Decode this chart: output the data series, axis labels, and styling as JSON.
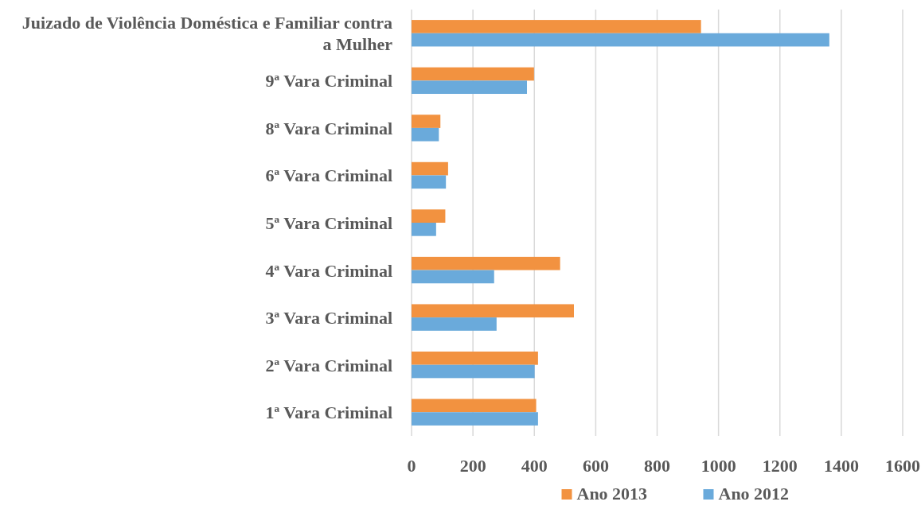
{
  "chart_data": {
    "type": "bar",
    "orientation": "horizontal",
    "categories": [
      "Juizado de Violência Doméstica e Familiar contra a Mulher",
      "9ª Vara Criminal",
      "8ª Vara Criminal",
      "6ª Vara Criminal",
      "5ª Vara Criminal",
      "4ª Vara Criminal",
      "3ª Vara Criminal",
      "2ª Vara Criminal",
      "1ª Vara Criminal"
    ],
    "series": [
      {
        "name": "Ano 2013",
        "color": "#f29240",
        "values": [
          943,
          399,
          94,
          119,
          110,
          484,
          529,
          412,
          406
        ]
      },
      {
        "name": "Ano 2012",
        "color": "#6aaadb",
        "values": [
          1361,
          376,
          89,
          112,
          80,
          269,
          277,
          401,
          412
        ]
      }
    ],
    "xlim": [
      0,
      1600
    ],
    "xticks": [
      0,
      200,
      400,
      600,
      800,
      1000,
      1200,
      1400,
      1600
    ],
    "grid": "x",
    "legend": "bottom"
  }
}
